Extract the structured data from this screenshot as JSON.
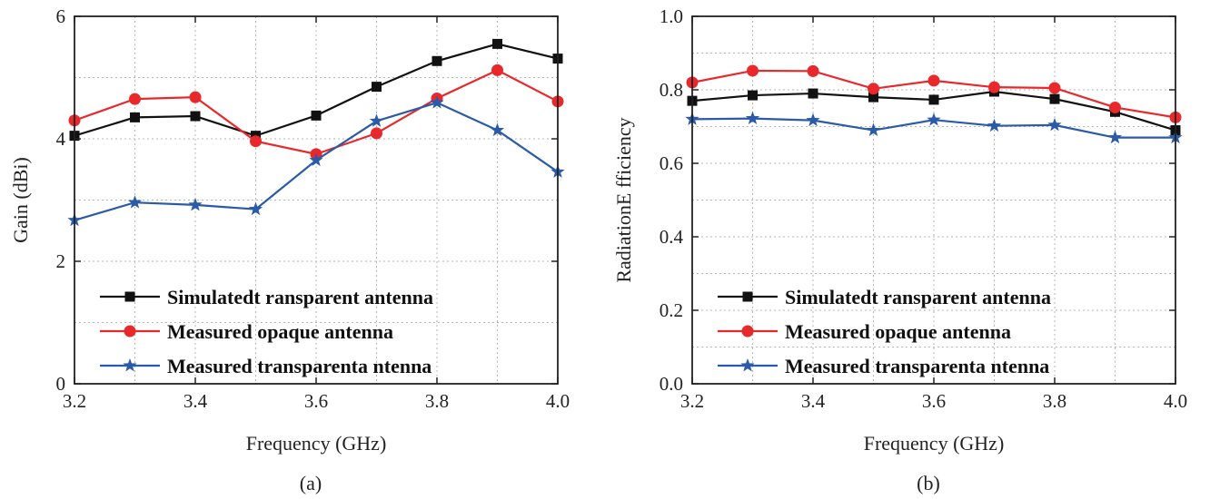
{
  "chart_data": [
    {
      "type": "line",
      "caption": "(a)",
      "xlabel": "Frequency (GHz)",
      "ylabel": "Gain (dBi)",
      "xlim": [
        3.2,
        4.0
      ],
      "ylim": [
        0,
        6
      ],
      "xticks": [
        "3.2",
        "3.4",
        "3.6",
        "3.8",
        "4.0"
      ],
      "yticks": [
        "0",
        "2",
        "4",
        "6"
      ],
      "grid": true,
      "legend_position": "bottom-right",
      "x": [
        3.2,
        3.3,
        3.4,
        3.5,
        3.6,
        3.7,
        3.8,
        3.9,
        4.0
      ],
      "series": [
        {
          "name": "Simulatedt ransparent antenna",
          "color": "#111111",
          "marker": "square",
          "values": [
            4.05,
            4.35,
            4.37,
            4.05,
            4.38,
            4.85,
            5.27,
            5.55,
            5.31
          ]
        },
        {
          "name": "Measured opaque antenna",
          "color": "#e8282b",
          "marker": "circle",
          "values": [
            4.3,
            4.65,
            4.68,
            3.96,
            3.75,
            4.09,
            4.66,
            5.12,
            4.61
          ]
        },
        {
          "name": "Measured transparenta ntenna",
          "color": "#2a5aa8",
          "marker": "star",
          "values": [
            2.67,
            2.96,
            2.92,
            2.85,
            3.65,
            4.29,
            4.59,
            4.14,
            3.46
          ]
        }
      ]
    },
    {
      "type": "line",
      "caption": "(b)",
      "xlabel": "Frequency (GHz)",
      "ylabel": "RadiationE fficiency",
      "xlim": [
        3.2,
        4.0
      ],
      "ylim": [
        0.0,
        1.0
      ],
      "xticks": [
        "3.2",
        "3.4",
        "3.6",
        "3.8",
        "4.0"
      ],
      "yticks": [
        "0.0",
        "0.2",
        "0.4",
        "0.6",
        "0.8",
        "1.0"
      ],
      "grid": true,
      "legend_position": "bottom-right",
      "x": [
        3.2,
        3.3,
        3.4,
        3.5,
        3.6,
        3.7,
        3.8,
        3.9,
        4.0
      ],
      "series": [
        {
          "name": "Simulatedt ransparent antenna",
          "color": "#111111",
          "marker": "square",
          "values": [
            0.77,
            0.785,
            0.79,
            0.78,
            0.773,
            0.795,
            0.775,
            0.74,
            0.69
          ]
        },
        {
          "name": "Measured opaque antenna",
          "color": "#e8282b",
          "marker": "circle",
          "values": [
            0.82,
            0.852,
            0.851,
            0.803,
            0.825,
            0.807,
            0.805,
            0.752,
            0.725
          ]
        },
        {
          "name": "Measured transparenta ntenna",
          "color": "#2a5aa8",
          "marker": "star",
          "values": [
            0.72,
            0.722,
            0.717,
            0.69,
            0.718,
            0.702,
            0.704,
            0.67,
            0.67
          ]
        }
      ]
    }
  ]
}
